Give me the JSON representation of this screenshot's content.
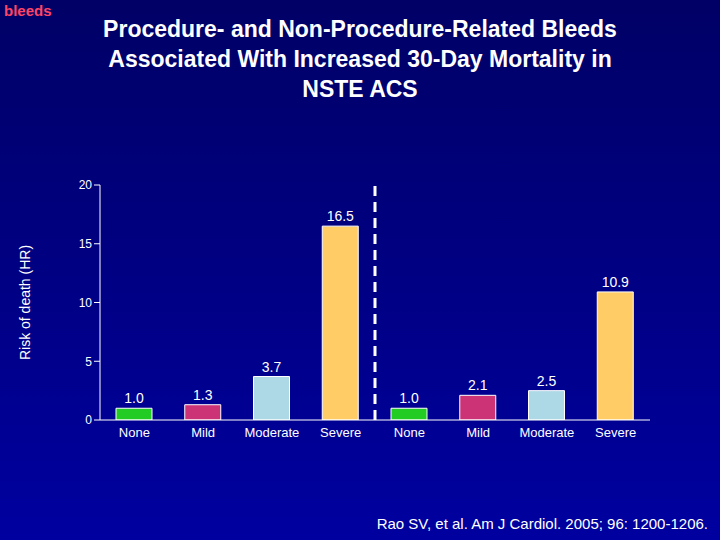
{
  "chart_data": {
    "type": "bar",
    "title": "Procedure- and Non-Procedure-Related Bleeds Associated With Increased 30-Day Mortality in NSTE ACS",
    "y_label": "Risk of death (HR)",
    "categories": [
      "None",
      "Mild",
      "Moderate",
      "Severe",
      "None",
      "Mild",
      "Moderate",
      "Severe"
    ],
    "values": [
      1.0,
      1.3,
      3.7,
      16.5,
      1.0,
      2.1,
      2.5,
      10.9
    ],
    "value_labels": [
      "1.0",
      "1.3",
      "3.7",
      "16.5",
      "1.0",
      "2.1",
      "2.5",
      "10.9"
    ],
    "colors": [
      "#22cc22",
      "#cc3377",
      "#add8e6",
      "#ffcc66",
      "#22cc22",
      "#cc3377",
      "#add8e6",
      "#ffcc66"
    ],
    "ylim": [
      0,
      20
    ],
    "yticks": [
      0,
      5,
      10,
      15,
      20
    ],
    "grid": false,
    "data_labels": true,
    "annotations": [
      "bleeds",
      "Rao SV, et al. Am J Cardiol. 2005; 96: 1200-1206."
    ]
  }
}
